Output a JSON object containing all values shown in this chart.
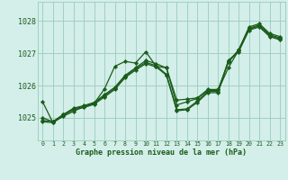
{
  "bg_color": "#d4eeea",
  "grid_color": "#99ccbb",
  "line_color": "#1a5c1a",
  "xlabel": "Graphe pression niveau de la mer (hPa)",
  "yticks": [
    1025,
    1026,
    1027,
    1028
  ],
  "xlim": [
    -0.5,
    23.5
  ],
  "ylim": [
    1024.3,
    1028.6
  ],
  "series": [
    [
      1025.5,
      1024.85,
      1025.05,
      1025.2,
      1025.35,
      1025.45,
      1025.9,
      1026.6,
      1026.75,
      1026.7,
      1027.05,
      1026.6,
      1026.55,
      1025.4,
      1025.5,
      1025.6,
      1025.85,
      1025.85,
      1026.55,
      1027.1,
      1027.82,
      1027.92,
      1027.62,
      1027.52
    ],
    [
      1025.0,
      1024.88,
      1025.1,
      1025.3,
      1025.38,
      1025.48,
      1025.72,
      1025.95,
      1026.32,
      1026.55,
      1026.78,
      1026.68,
      1026.55,
      1025.55,
      1025.58,
      1025.62,
      1025.88,
      1025.88,
      1026.72,
      1027.12,
      1027.78,
      1027.88,
      1027.58,
      1027.48
    ],
    [
      1024.92,
      1024.88,
      1025.1,
      1025.28,
      1025.35,
      1025.45,
      1025.68,
      1025.92,
      1026.28,
      1026.52,
      1026.72,
      1026.62,
      1026.35,
      1025.25,
      1025.28,
      1025.52,
      1025.82,
      1025.82,
      1026.78,
      1027.08,
      1027.75,
      1027.85,
      1027.55,
      1027.45
    ],
    [
      1024.88,
      1024.85,
      1025.08,
      1025.25,
      1025.32,
      1025.42,
      1025.65,
      1025.88,
      1026.25,
      1026.48,
      1026.68,
      1026.58,
      1026.32,
      1025.22,
      1025.25,
      1025.48,
      1025.78,
      1025.78,
      1026.75,
      1027.05,
      1027.72,
      1027.82,
      1027.52,
      1027.42
    ]
  ]
}
